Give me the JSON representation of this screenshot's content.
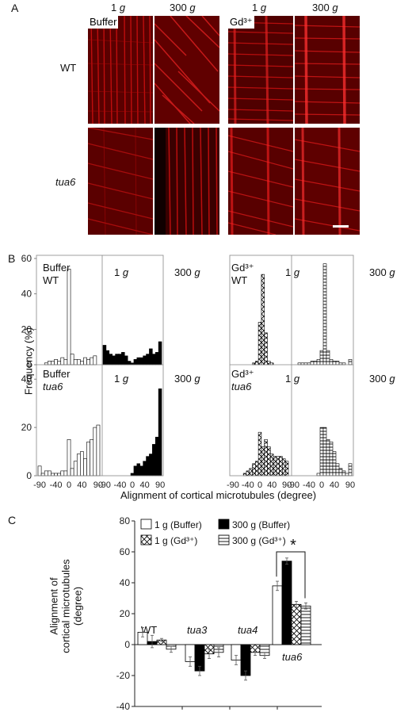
{
  "panelA": {
    "letter": "A",
    "col_headers": [
      {
        "value": "1",
        "unit": "g"
      },
      {
        "value": "300",
        "unit": "g"
      },
      {
        "value": "1",
        "unit": "g"
      },
      {
        "value": "300",
        "unit": "g"
      }
    ],
    "treatment_tags": [
      "Buffer",
      "Gd³⁺"
    ],
    "row_labels": [
      "WT",
      "tua6"
    ]
  },
  "panelB": {
    "letter": "B",
    "ylabel": "Frequency (%)",
    "xlabel": "Alignment of cortical microtubules (degree)",
    "yticks": [
      "0",
      "20",
      "40",
      "60"
    ],
    "yticks_bottom": [
      "0",
      "20",
      "40"
    ],
    "xticks": [
      "-90",
      "-40",
      "0",
      "40",
      "90"
    ],
    "subplot_labels": {
      "tl_treat": "Buffer",
      "tl_geno": "WT",
      "tr_treat": "Gd³⁺",
      "tr_geno": "WT",
      "bl_treat": "Buffer",
      "bl_geno": "tua6",
      "br_treat": "Gd³⁺",
      "br_geno": "tua6",
      "one": "1",
      "three": "300",
      "g": "g"
    }
  },
  "panelC": {
    "letter": "C",
    "ylabel_line1": "Alignment of",
    "ylabel_line2": "cortical microtubules (degree)",
    "yticks": [
      "80",
      "60",
      "40",
      "20",
      "0",
      "-20",
      "-40"
    ],
    "legend": [
      "1 g (Buffer)",
      "300 g (Buffer)",
      "1 g (Gd³⁺)",
      "300 g (Gd³⁺)"
    ],
    "group_labels": [
      "WT",
      "tua3",
      "tua4",
      "tua6"
    ],
    "significance": "*"
  },
  "chart_data": [
    {
      "type": "bar",
      "title": "Buffer WT 1 g",
      "x": [
        -90,
        -80,
        -70,
        -60,
        -50,
        -40,
        -30,
        -20,
        -10,
        0,
        10,
        20,
        30,
        40,
        50,
        60,
        70,
        80,
        90
      ],
      "values": [
        0,
        0,
        1,
        2,
        2,
        3,
        2,
        4,
        3,
        54,
        6,
        3,
        3,
        2,
        4,
        3,
        4,
        5,
        0
      ],
      "ylim": [
        0,
        60
      ]
    },
    {
      "type": "bar",
      "title": "Buffer WT 300 g",
      "x": [
        -90,
        -80,
        -70,
        -60,
        -50,
        -40,
        -30,
        -20,
        -10,
        0,
        10,
        20,
        30,
        40,
        50,
        60,
        70,
        80,
        90
      ],
      "values": [
        11,
        8,
        6,
        5,
        6,
        6,
        7,
        5,
        2,
        1,
        3,
        4,
        4,
        5,
        6,
        9,
        6,
        7,
        13
      ],
      "ylim": [
        0,
        60
      ]
    },
    {
      "type": "bar",
      "title": "Gd WT 1 g",
      "x": [
        -90,
        -80,
        -70,
        -60,
        -50,
        -40,
        -30,
        -20,
        -10,
        0,
        10,
        20,
        30,
        40,
        50,
        60,
        70,
        80,
        90
      ],
      "values": [
        0,
        0,
        0,
        0,
        0,
        0,
        0,
        1,
        2,
        24,
        51,
        18,
        2,
        1,
        0,
        0,
        0,
        0,
        0
      ],
      "ylim": [
        0,
        60
      ]
    },
    {
      "type": "bar",
      "title": "Gd WT 300 g",
      "x": [
        -90,
        -80,
        -70,
        -60,
        -50,
        -40,
        -30,
        -20,
        -10,
        0,
        10,
        20,
        30,
        40,
        50,
        60,
        70,
        80,
        90
      ],
      "values": [
        0,
        0,
        1,
        1,
        1,
        1,
        2,
        2,
        3,
        8,
        57,
        8,
        3,
        2,
        2,
        1,
        1,
        0,
        3
      ],
      "ylim": [
        0,
        60
      ]
    },
    {
      "type": "bar",
      "title": "Buffer tua6 1 g",
      "x": [
        -90,
        -80,
        -70,
        -60,
        -50,
        -40,
        -30,
        -20,
        -10,
        0,
        10,
        20,
        30,
        40,
        50,
        60,
        70,
        80,
        90
      ],
      "values": [
        4,
        1,
        2,
        2,
        1,
        1,
        1,
        2,
        2,
        15,
        3,
        6,
        9,
        10,
        7,
        14,
        15,
        20,
        21
      ],
      "ylim": [
        0,
        40
      ]
    },
    {
      "type": "bar",
      "title": "Buffer tua6 300 g",
      "x": [
        -90,
        -80,
        -70,
        -60,
        -50,
        -40,
        -30,
        -20,
        -10,
        0,
        10,
        20,
        30,
        40,
        50,
        60,
        70,
        80,
        90
      ],
      "values": [
        0,
        0,
        0,
        0,
        0,
        0,
        0,
        0,
        0,
        1,
        4,
        5,
        4,
        6,
        8,
        9,
        13,
        16,
        36
      ],
      "ylim": [
        0,
        40
      ]
    },
    {
      "type": "bar",
      "title": "Gd tua6 1 g",
      "x": [
        -90,
        -80,
        -70,
        -60,
        -50,
        -40,
        -30,
        -20,
        -10,
        0,
        10,
        20,
        30,
        40,
        50,
        60,
        70,
        80,
        90
      ],
      "values": [
        0,
        0,
        0,
        0,
        1,
        2,
        3,
        5,
        6,
        18,
        12,
        15,
        12,
        9,
        8,
        8,
        8,
        7,
        6
      ],
      "ylim": [
        0,
        40
      ]
    },
    {
      "type": "bar",
      "title": "Gd tua6 300 g",
      "x": [
        -90,
        -80,
        -70,
        -60,
        -50,
        -40,
        -30,
        -20,
        -10,
        0,
        10,
        20,
        30,
        40,
        50,
        60,
        70,
        80,
        90
      ],
      "values": [
        0,
        0,
        0,
        0,
        0,
        0,
        0,
        0,
        1,
        20,
        20,
        15,
        14,
        10,
        5,
        3,
        2,
        1,
        5
      ],
      "ylim": [
        0,
        40
      ]
    },
    {
      "type": "bar",
      "categories": [
        "WT",
        "tua3",
        "tua4",
        "tua6"
      ],
      "series": [
        {
          "name": "1 g (Buffer)",
          "values": [
            8,
            -11,
            -10,
            38
          ],
          "err": [
            3,
            3,
            3,
            3
          ]
        },
        {
          "name": "300 g (Buffer)",
          "values": [
            2,
            -17,
            -20,
            54
          ],
          "err": [
            4,
            3,
            3,
            2
          ]
        },
        {
          "name": "1 g (Gd³⁺)",
          "values": [
            3,
            -6,
            -5,
            26
          ],
          "err": [
            1,
            3,
            2,
            2
          ]
        },
        {
          "name": "300 g (Gd³⁺)",
          "values": [
            -3,
            -5,
            -7,
            25
          ],
          "err": [
            2,
            3,
            2,
            2
          ]
        }
      ],
      "ylabel": "Alignment of cortical microtubules (degree)",
      "ylim": [
        -40,
        80
      ]
    }
  ]
}
